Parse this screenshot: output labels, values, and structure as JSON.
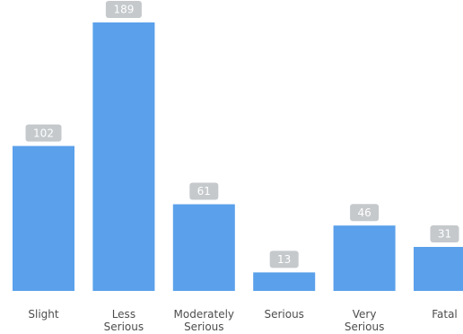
{
  "chart_data": {
    "type": "bar",
    "categories": [
      [
        "Slight"
      ],
      [
        "Less",
        "Serious"
      ],
      [
        "Moderately",
        "Serious"
      ],
      [
        "Serious"
      ],
      [
        "Very",
        "Serious"
      ],
      [
        "Fatal"
      ]
    ],
    "values": [
      102,
      189,
      61,
      13,
      46,
      31
    ],
    "title": "",
    "xlabel": "",
    "ylabel": "",
    "ylim": [
      0,
      189
    ],
    "grid": false,
    "legend": "none",
    "colors": {
      "bar": "#5aa0eb",
      "label_bg": "#c5c9cc",
      "label_text": "#ffffff",
      "axis_text": "#4d4d4d"
    }
  }
}
